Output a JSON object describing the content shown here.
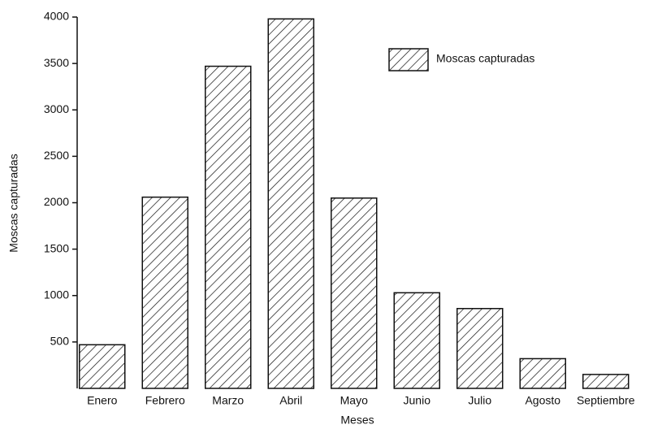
{
  "chart_data": {
    "type": "bar",
    "x_label": "Meses",
    "y_label": "Moscas capturadas",
    "categories": [
      "Enero",
      "Febrero",
      "Marzo",
      "Abril",
      "Mayo",
      "Junio",
      "Julio",
      "Agosto",
      "Septiembre"
    ],
    "series": [
      {
        "name": "Moscas capturadas",
        "color": "#111111",
        "values": [
          470,
          2060,
          3470,
          3980,
          2050,
          1030,
          860,
          320,
          150
        ]
      }
    ],
    "ylim": [
      0,
      4000
    ],
    "yticks": [
      500,
      1000,
      1500,
      2000,
      2500,
      3000,
      3500,
      4000
    ],
    "legend": "top right"
  }
}
